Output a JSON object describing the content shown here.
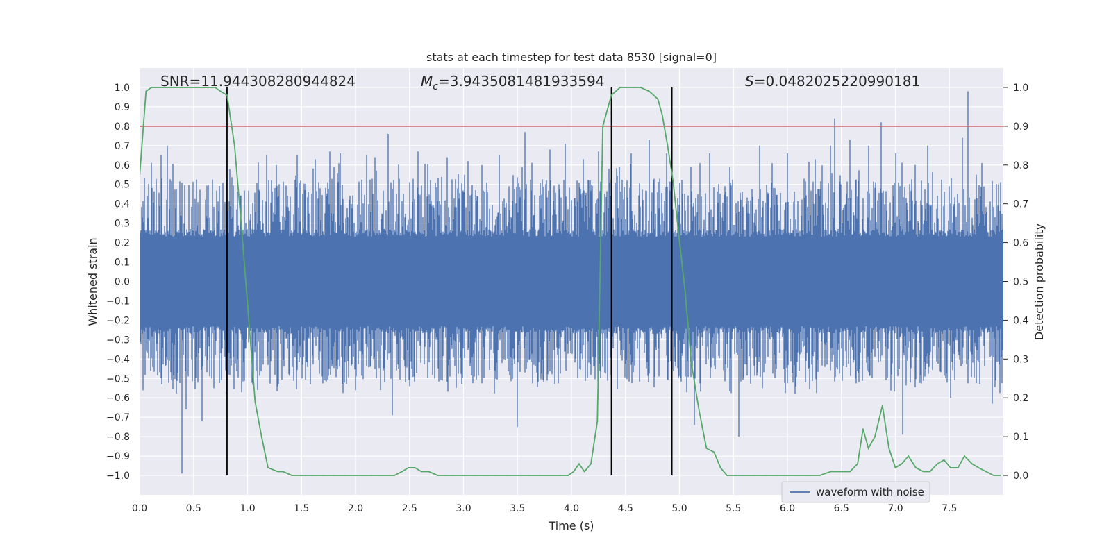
{
  "chart_data": {
    "type": "line",
    "title": "stats at each timestep for test data 8530 [signal=0]",
    "xlabel": "Time (s)",
    "ylabel_left": "Whitened strain",
    "ylabel_right": "Detection probability",
    "xlim": [
      0.0,
      8.0
    ],
    "ylim_left": [
      -1.1,
      1.1
    ],
    "ylim_right": [
      -0.05,
      1.05
    ],
    "x_ticks": [
      0.0,
      0.5,
      1.0,
      1.5,
      2.0,
      2.5,
      3.0,
      3.5,
      4.0,
      4.5,
      5.0,
      5.5,
      6.0,
      6.5,
      7.0,
      7.5
    ],
    "x_tick_labels": [
      "0.0",
      "0.5",
      "1.0",
      "1.5",
      "2.0",
      "2.5",
      "3.0",
      "3.5",
      "4.0",
      "4.5",
      "5.0",
      "5.5",
      "6.0",
      "6.5",
      "7.0",
      "7.5"
    ],
    "y_left_ticks": [
      1.0,
      0.9,
      0.8,
      0.7,
      0.6,
      0.5,
      0.4,
      0.3,
      0.2,
      0.1,
      0.0,
      -0.1,
      -0.2,
      -0.3,
      -0.4,
      -0.5,
      -0.6,
      -0.7,
      -0.8,
      -0.9,
      -1.0
    ],
    "y_left_tick_labels": [
      "1.0",
      "0.9",
      "0.8",
      "0.7",
      "0.6",
      "0.5",
      "0.4",
      "0.3",
      "0.2",
      "0.1",
      "0.0",
      "−0.1",
      "−0.2",
      "−0.3",
      "−0.4",
      "−0.5",
      "−0.6",
      "−0.7",
      "−0.8",
      "−0.9",
      "−1.0"
    ],
    "y_right_ticks": [
      1.0,
      0.9,
      0.8,
      0.7,
      0.6,
      0.5,
      0.4,
      0.3,
      0.2,
      0.1,
      0.0
    ],
    "y_right_tick_labels": [
      "1.0",
      "0.9",
      "0.8",
      "0.7",
      "0.6",
      "0.5",
      "0.4",
      "0.3",
      "0.2",
      "0.1",
      "0.0"
    ],
    "annotations": {
      "snr": "SNR=11.944308280944824",
      "mc_symbol": "M",
      "mc_sub": "c",
      "mc_value": "=3.9435081481933594",
      "s_symbol": "S",
      "s_value": "=0.0482025220990181"
    },
    "threshold": {
      "value": 0.9,
      "axis": "right",
      "color": "#c44e52"
    },
    "vertical_lines": [
      0.81,
      4.37,
      4.93
    ],
    "legend": {
      "label": "waveform with noise",
      "location": "lower right"
    },
    "series": [
      {
        "name": "waveform with noise",
        "axis": "left",
        "color": "#4c72b0",
        "sample_rate": 2048,
        "core_amplitude": 0.2,
        "typical_peak": 0.55,
        "spikes": [
          {
            "t": 0.2,
            "v": 0.65
          },
          {
            "t": 0.26,
            "v": 0.7
          },
          {
            "t": 0.39,
            "v": -0.99
          },
          {
            "t": 0.43,
            "v": -0.66
          },
          {
            "t": 0.58,
            "v": -0.72
          },
          {
            "t": 1.18,
            "v": 0.65
          },
          {
            "t": 1.27,
            "v": 0.6
          },
          {
            "t": 1.46,
            "v": 0.65
          },
          {
            "t": 1.63,
            "v": 0.63
          },
          {
            "t": 1.76,
            "v": 0.67
          },
          {
            "t": 1.86,
            "v": 0.66
          },
          {
            "t": 2.1,
            "v": 0.65
          },
          {
            "t": 2.18,
            "v": 0.64
          },
          {
            "t": 2.3,
            "v": 0.76
          },
          {
            "t": 2.34,
            "v": -0.69
          },
          {
            "t": 2.58,
            "v": 0.67
          },
          {
            "t": 2.85,
            "v": 0.64
          },
          {
            "t": 3.04,
            "v": 0.62
          },
          {
            "t": 3.17,
            "v": 0.6
          },
          {
            "t": 3.33,
            "v": 0.65
          },
          {
            "t": 3.5,
            "v": -0.75
          },
          {
            "t": 3.57,
            "v": 0.77
          },
          {
            "t": 3.8,
            "v": 0.68
          },
          {
            "t": 3.94,
            "v": 0.71
          },
          {
            "t": 4.11,
            "v": 0.63
          },
          {
            "t": 4.25,
            "v": 0.67
          },
          {
            "t": 4.55,
            "v": 0.66
          },
          {
            "t": 4.72,
            "v": 0.73
          },
          {
            "t": 4.88,
            "v": 0.66
          },
          {
            "t": 5.14,
            "v": -0.74
          },
          {
            "t": 5.19,
            "v": 0.61
          },
          {
            "t": 5.28,
            "v": 0.66
          },
          {
            "t": 5.55,
            "v": -0.8
          },
          {
            "t": 5.74,
            "v": 0.7
          },
          {
            "t": 6.0,
            "v": 0.66
          },
          {
            "t": 6.26,
            "v": 0.63
          },
          {
            "t": 6.4,
            "v": 0.7
          },
          {
            "t": 6.44,
            "v": 0.84
          },
          {
            "t": 6.58,
            "v": 0.73
          },
          {
            "t": 6.75,
            "v": 0.7
          },
          {
            "t": 6.87,
            "v": 0.82
          },
          {
            "t": 7.0,
            "v": 0.66
          },
          {
            "t": 7.07,
            "v": -0.79
          },
          {
            "t": 7.3,
            "v": 0.7
          },
          {
            "t": 7.51,
            "v": -0.6
          },
          {
            "t": 7.62,
            "v": 0.74
          },
          {
            "t": 7.67,
            "v": 0.98
          },
          {
            "t": 7.8,
            "v": 0.61
          },
          {
            "t": 7.9,
            "v": -0.63
          }
        ]
      },
      {
        "name": "detection probability",
        "axis": "right",
        "color": "#55a868",
        "x": [
          0.0,
          0.06,
          0.11,
          0.2,
          0.3,
          0.4,
          0.5,
          0.6,
          0.7,
          0.75,
          0.81,
          0.88,
          0.95,
          1.02,
          1.07,
          1.13,
          1.19,
          1.28,
          1.33,
          1.41,
          1.5,
          1.6,
          1.7,
          1.8,
          1.9,
          2.0,
          2.07,
          2.15,
          2.22,
          2.31,
          2.36,
          2.43,
          2.49,
          2.55,
          2.61,
          2.68,
          2.76,
          2.83,
          2.9,
          3.0,
          3.1,
          3.2,
          3.3,
          3.4,
          3.5,
          3.6,
          3.7,
          3.8,
          3.9,
          3.97,
          4.02,
          4.07,
          4.12,
          4.18,
          4.24,
          4.29,
          4.37,
          4.45,
          4.5,
          4.58,
          4.64,
          4.72,
          4.8,
          4.84,
          4.89,
          4.94,
          4.99,
          5.05,
          5.11,
          5.18,
          5.25,
          5.32,
          5.38,
          5.44,
          5.52,
          5.6,
          5.7,
          5.8,
          5.9,
          6.0,
          6.1,
          6.2,
          6.3,
          6.4,
          6.47,
          6.53,
          6.58,
          6.65,
          6.7,
          6.75,
          6.81,
          6.88,
          6.94,
          7.0,
          7.06,
          7.12,
          7.19,
          7.26,
          7.32,
          7.39,
          7.45,
          7.51,
          7.58,
          7.64,
          7.71,
          7.77,
          7.84,
          7.91,
          7.97
        ],
        "y": [
          0.77,
          0.99,
          1.0,
          1.0,
          1.0,
          1.0,
          1.0,
          1.0,
          1.0,
          0.99,
          0.98,
          0.85,
          0.62,
          0.37,
          0.19,
          0.1,
          0.02,
          0.01,
          0.01,
          0.0,
          0.0,
          0.0,
          0.0,
          0.0,
          0.0,
          0.0,
          0.0,
          0.0,
          0.0,
          0.0,
          0.0,
          0.01,
          0.02,
          0.02,
          0.01,
          0.01,
          0.0,
          0.0,
          0.0,
          0.0,
          0.0,
          0.0,
          0.0,
          0.0,
          0.0,
          0.0,
          0.0,
          0.0,
          0.0,
          0.0,
          0.01,
          0.03,
          0.01,
          0.03,
          0.14,
          0.9,
          0.98,
          1.0,
          1.0,
          1.0,
          1.0,
          0.99,
          0.97,
          0.93,
          0.85,
          0.76,
          0.63,
          0.48,
          0.29,
          0.17,
          0.07,
          0.06,
          0.02,
          0.0,
          0.0,
          0.0,
          0.0,
          0.0,
          0.0,
          0.0,
          0.0,
          0.0,
          0.0,
          0.01,
          0.01,
          0.01,
          0.01,
          0.03,
          0.12,
          0.07,
          0.1,
          0.18,
          0.07,
          0.02,
          0.03,
          0.05,
          0.02,
          0.01,
          0.01,
          0.03,
          0.04,
          0.02,
          0.02,
          0.05,
          0.03,
          0.02,
          0.01,
          0.0,
          0.0
        ]
      }
    ]
  }
}
